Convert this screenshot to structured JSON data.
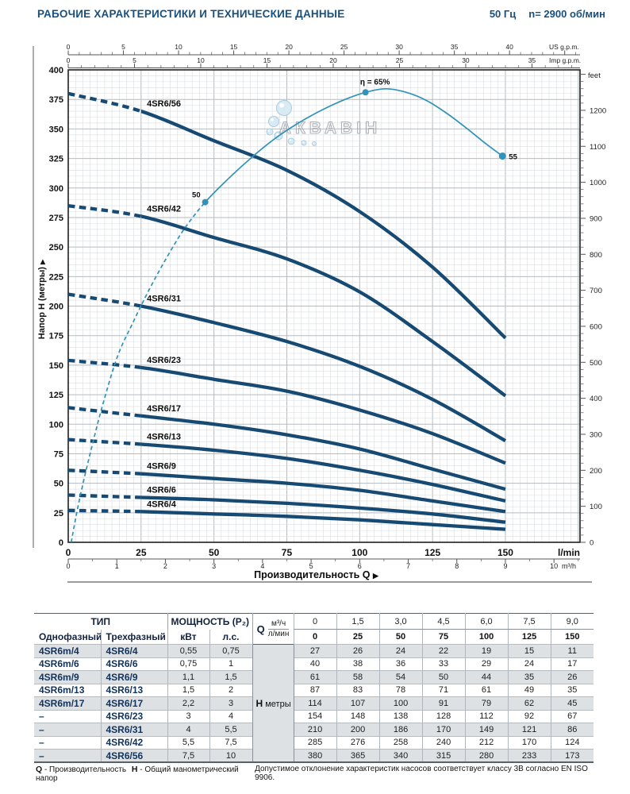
{
  "header": {
    "title": "РАБОЧИЕ ХАРАКТЕРИСТИКИ И ТЕХНИЧЕСКИЕ ДАННЫЕ",
    "frequency": "50 Гц",
    "speed": "n= 2900 об/мин"
  },
  "chart": {
    "watermark": "АКВАВІН",
    "axes": {
      "us_gpm": {
        "unit": "US g.p.m.",
        "labels": [
          0,
          5,
          10,
          15,
          20,
          25,
          30,
          35,
          40
        ]
      },
      "imp_gpm": {
        "unit": "Imp g.p.m.",
        "labels": [
          0,
          5,
          10,
          15,
          20,
          25,
          30,
          35
        ]
      },
      "feet": {
        "unit": "feet",
        "labels": [
          0,
          100,
          200,
          300,
          400,
          500,
          600,
          700,
          800,
          900,
          1000,
          1100,
          1200
        ]
      },
      "meters": {
        "label": "Напор Н (метры)",
        "labels": [
          0,
          25,
          50,
          75,
          100,
          125,
          150,
          175,
          200,
          225,
          250,
          275,
          300,
          325,
          350,
          375,
          400
        ]
      },
      "lmin": {
        "unit": "l/min",
        "labels": [
          0,
          25,
          50,
          75,
          100,
          125,
          150
        ]
      },
      "m3h": {
        "unit": "m³/h",
        "labels": [
          0,
          1,
          2,
          3,
          4,
          5,
          6,
          7,
          8,
          9,
          10
        ]
      },
      "x_title": "Производительность Q",
      "arrow": "▶"
    }
  },
  "chart_data": {
    "type": "line",
    "x_label": "Производительность Q",
    "y_label": "Напор Н (метры)",
    "x_lmin": [
      0,
      25,
      50,
      75,
      100,
      125,
      150
    ],
    "ylim": [
      0,
      400
    ],
    "series": [
      {
        "name": "4SR6/56",
        "values": [
          380,
          365,
          340,
          315,
          280,
          233,
          173
        ]
      },
      {
        "name": "4SR6/42",
        "values": [
          285,
          276,
          258,
          240,
          212,
          170,
          124
        ]
      },
      {
        "name": "4SR6/31",
        "values": [
          210,
          200,
          186,
          170,
          149,
          121,
          86
        ]
      },
      {
        "name": "4SR6/23",
        "values": [
          154,
          148,
          138,
          128,
          112,
          92,
          67
        ]
      },
      {
        "name": "4SR6/17",
        "values": [
          114,
          107,
          100,
          91,
          79,
          62,
          45
        ]
      },
      {
        "name": "4SR6/13",
        "values": [
          87,
          83,
          78,
          71,
          61,
          49,
          35
        ]
      },
      {
        "name": "4SR6/9",
        "values": [
          61,
          58,
          54,
          50,
          44,
          35,
          26
        ]
      },
      {
        "name": "4SR6/6",
        "values": [
          40,
          38,
          36,
          33,
          29,
          24,
          17
        ]
      },
      {
        "name": "4SR6/4",
        "values": [
          27,
          26,
          24,
          22,
          19,
          15,
          11
        ]
      }
    ],
    "efficiency": {
      "label": "η = 65%",
      "marker_start_label": "50",
      "marker_end_label": "55",
      "dashed_points": [
        [
          1,
          0
        ],
        [
          4,
          38
        ],
        [
          8,
          80
        ],
        [
          12,
          118
        ],
        [
          17,
          158
        ],
        [
          22,
          185
        ],
        [
          28,
          215
        ],
        [
          34,
          242
        ],
        [
          40,
          266
        ],
        [
          47,
          288
        ]
      ],
      "solid_points": [
        [
          47,
          288
        ],
        [
          55,
          308
        ],
        [
          63,
          326
        ],
        [
          71,
          342
        ],
        [
          79,
          355
        ],
        [
          87,
          366
        ],
        [
          95,
          375
        ],
        [
          102,
          381
        ],
        [
          109,
          384
        ],
        [
          116,
          381
        ],
        [
          123,
          374
        ],
        [
          130,
          363
        ],
        [
          137,
          350
        ],
        [
          143,
          338
        ],
        [
          149,
          327
        ]
      ],
      "marker_start": [
        47,
        288
      ],
      "peak_marker": [
        102,
        381
      ],
      "marker_end": [
        149,
        327
      ]
    },
    "colors": {
      "curve": "#174a72",
      "efficiency": "#2f93ba"
    }
  },
  "table": {
    "header": {
      "type": "ТИП",
      "power": "МОЩНОСТЬ (P₂)",
      "single": "Однофазный",
      "three": "Трехфазный",
      "kw": "кВт",
      "hp": "л.с.",
      "q": "Q",
      "m3h": "м³/ч",
      "lmin": "л/мин",
      "m3h_values": [
        "0",
        "1,5",
        "3,0",
        "4,5",
        "6,0",
        "7,5",
        "9,0"
      ],
      "lmin_values": [
        "0",
        "25",
        "50",
        "75",
        "100",
        "125",
        "150"
      ],
      "h": "Н",
      "h_unit": "метры"
    },
    "rows": [
      {
        "single": "4SR6m/4",
        "three": "4SR6/4",
        "kw": "0,55",
        "hp": "0,75",
        "h": [
          27,
          26,
          24,
          22,
          19,
          15,
          11
        ]
      },
      {
        "single": "4SR6m/6",
        "three": "4SR6/6",
        "kw": "0,75",
        "hp": "1",
        "h": [
          40,
          38,
          36,
          33,
          29,
          24,
          17
        ]
      },
      {
        "single": "4SR6m/9",
        "three": "4SR6/9",
        "kw": "1,1",
        "hp": "1,5",
        "h": [
          61,
          58,
          54,
          50,
          44,
          35,
          26
        ]
      },
      {
        "single": "4SR6m/13",
        "three": "4SR6/13",
        "kw": "1,5",
        "hp": "2",
        "h": [
          87,
          83,
          78,
          71,
          61,
          49,
          35
        ]
      },
      {
        "single": "4SR6m/17",
        "three": "4SR6/17",
        "kw": "2,2",
        "hp": "3",
        "h": [
          114,
          107,
          100,
          91,
          79,
          62,
          45
        ]
      },
      {
        "single": "–",
        "three": "4SR6/23",
        "kw": "3",
        "hp": "4",
        "h": [
          154,
          148,
          138,
          128,
          112,
          92,
          67
        ]
      },
      {
        "single": "–",
        "three": "4SR6/31",
        "kw": "4",
        "hp": "5,5",
        "h": [
          210,
          200,
          186,
          170,
          149,
          121,
          86
        ]
      },
      {
        "single": "–",
        "three": "4SR6/42",
        "kw": "5,5",
        "hp": "7,5",
        "h": [
          285,
          276,
          258,
          240,
          212,
          170,
          124
        ]
      },
      {
        "single": "–",
        "three": "4SR6/56",
        "kw": "7,5",
        "hp": "10",
        "h": [
          380,
          365,
          340,
          315,
          280,
          233,
          173
        ]
      }
    ]
  },
  "footer": {
    "q_abbr": "Q",
    "q_text": "- Производительность",
    "h_abbr": "Н",
    "h_text": "- Общий манометрический напор",
    "note": "Допустимое отклонение характеристик насосов соответствует классу 3В согласно EN ISO 9906."
  }
}
